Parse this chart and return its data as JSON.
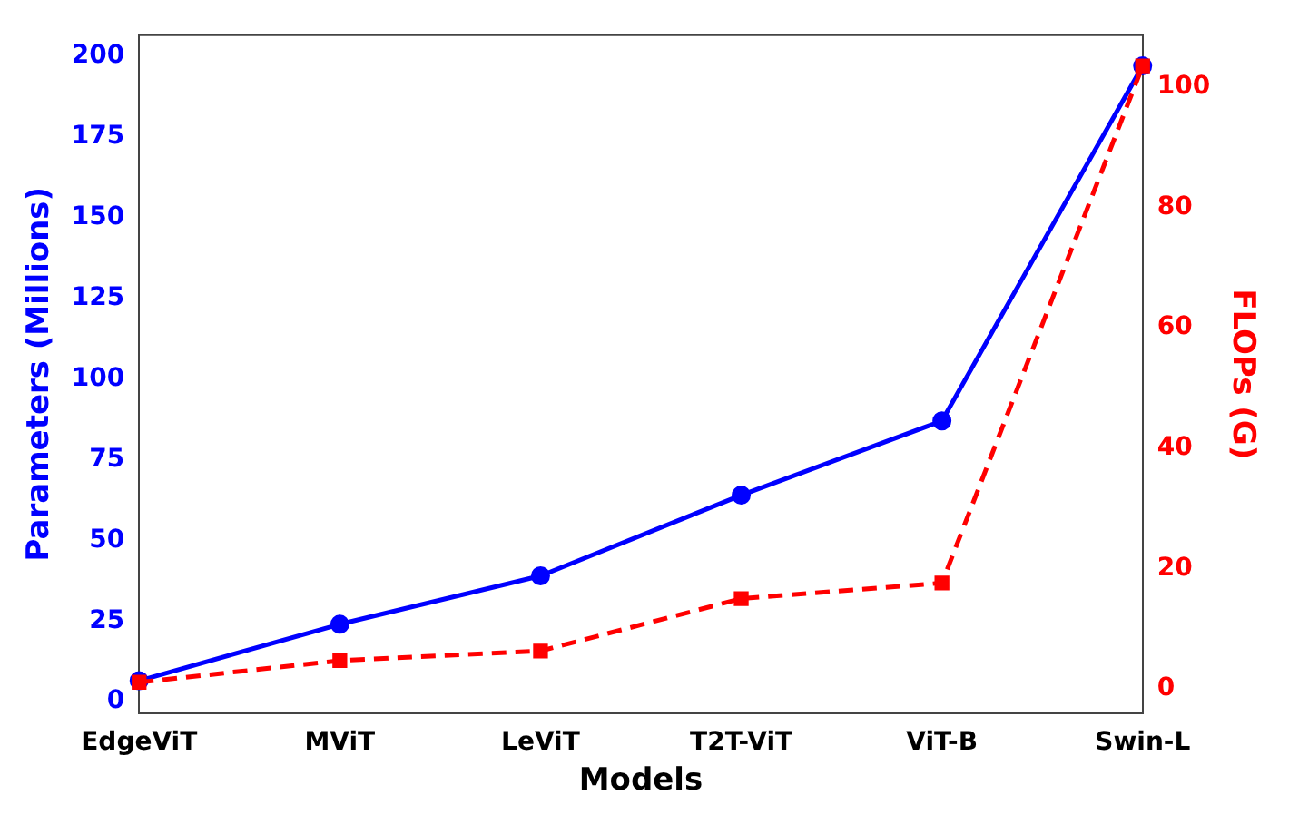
{
  "chart_data": {
    "type": "line",
    "xlabel": "Models",
    "ylabel": "Parameters (Millions)",
    "y2label": "FLOPs (G)",
    "categories": [
      "EdgeViT",
      "MViT",
      "LeViT",
      "T2T-ViT",
      "ViT-B",
      "Swin-L"
    ],
    "series": [
      {
        "color": "#0000ff",
        "values": [
          6.5,
          24,
          39,
          64,
          87,
          197
        ],
        "marker": "circle",
        "line_style": "solid"
      },
      {
        "color": "#ff0000",
        "values": [
          1.1,
          4.7,
          6.3,
          15,
          17.6,
          103.5
        ],
        "axis": "y2",
        "marker": "square",
        "line_style": "dashed"
      }
    ],
    "ylim": [
      -3.5,
      206.5
    ],
    "yticks": [
      0,
      25,
      50,
      75,
      100,
      125,
      150,
      175,
      200
    ],
    "y2lim": [
      -4,
      108.6
    ],
    "y2ticks": [
      0,
      20,
      40,
      60,
      80,
      100
    ],
    "grid": false,
    "legend": false
  }
}
